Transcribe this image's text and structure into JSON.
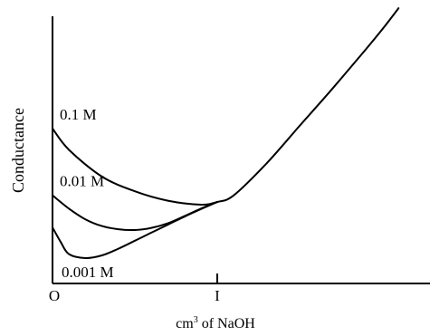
{
  "chart_data": {
    "type": "line",
    "title": "",
    "xlabel_prefix": "cm",
    "xlabel_superscript": "3",
    "xlabel_suffix": " of NaOH",
    "ylabel": "Conductance",
    "xlim": [
      0,
      2.3
    ],
    "ylim": [
      0,
      10
    ],
    "grid": false,
    "ticks": [
      {
        "label": "O",
        "x": 0
      },
      {
        "label": "I",
        "x": 1
      }
    ],
    "series": [
      {
        "name": "0.1 M",
        "x": [
          0,
          0.1,
          0.3,
          0.5,
          0.7,
          0.9,
          1.0,
          1.1,
          1.3,
          1.5,
          1.7,
          1.9,
          2.0,
          2.1
        ],
        "y": [
          5.8,
          5.0,
          4.0,
          3.45,
          3.1,
          2.95,
          3.05,
          3.3,
          4.5,
          5.9,
          7.3,
          8.75,
          9.5,
          10.3
        ]
      },
      {
        "name": "0.01 M",
        "x": [
          0,
          0.1,
          0.2,
          0.3,
          0.4,
          0.5,
          0.6,
          0.7,
          0.8,
          0.9,
          1.0
        ],
        "y": [
          3.3,
          2.8,
          2.4,
          2.15,
          2.03,
          2.0,
          2.08,
          2.25,
          2.52,
          2.8,
          3.05
        ]
      },
      {
        "name": "0.001 M",
        "x": [
          0,
          0.05,
          0.1,
          0.2,
          0.3,
          0.4,
          0.5,
          0.6,
          0.7,
          0.8,
          0.9,
          1.0
        ],
        "y": [
          2.1,
          1.55,
          1.1,
          0.95,
          1.05,
          1.3,
          1.6,
          1.9,
          2.2,
          2.5,
          2.78,
          3.05
        ]
      }
    ]
  }
}
